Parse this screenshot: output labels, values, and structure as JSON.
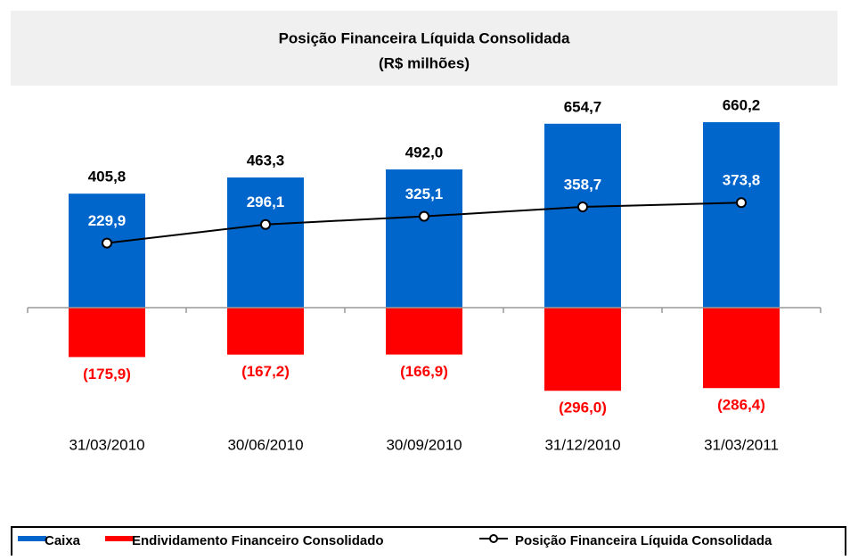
{
  "chart_data": {
    "type": "bar",
    "title": "Posição Financeira Líquida Consolidada",
    "subtitle": "(R$ milhões)",
    "categories": [
      "31/03/2010",
      "30/06/2010",
      "30/09/2010",
      "31/12/2010",
      "31/03/2011"
    ],
    "ylim": [
      -400,
      800
    ],
    "legend": "bottom",
    "series": [
      {
        "name": "Caixa",
        "type": "bar",
        "color": "#0066cc",
        "values": [
          405.8,
          463.3,
          492.0,
          654.7,
          660.2
        ],
        "value_labels": [
          "405,8",
          "463,3",
          "492,0",
          "654,7",
          "660,2"
        ]
      },
      {
        "name": "Endividamento Financeiro Consolidado",
        "type": "bar",
        "color": "#ff0000",
        "values": [
          -175.9,
          -167.2,
          -166.9,
          -296.0,
          -286.4
        ],
        "value_labels": [
          "(175,9)",
          "(167,2)",
          "(166,9)",
          "(296,0)",
          "(286,4)"
        ]
      },
      {
        "name": "Posição Financeira Líquida Consolidada",
        "type": "line",
        "color": "#000000",
        "values": [
          229.9,
          296.1,
          325.1,
          358.7,
          373.8
        ],
        "value_labels": [
          "229,9",
          "296,1",
          "325,1",
          "358,7",
          "373,8"
        ]
      }
    ]
  }
}
